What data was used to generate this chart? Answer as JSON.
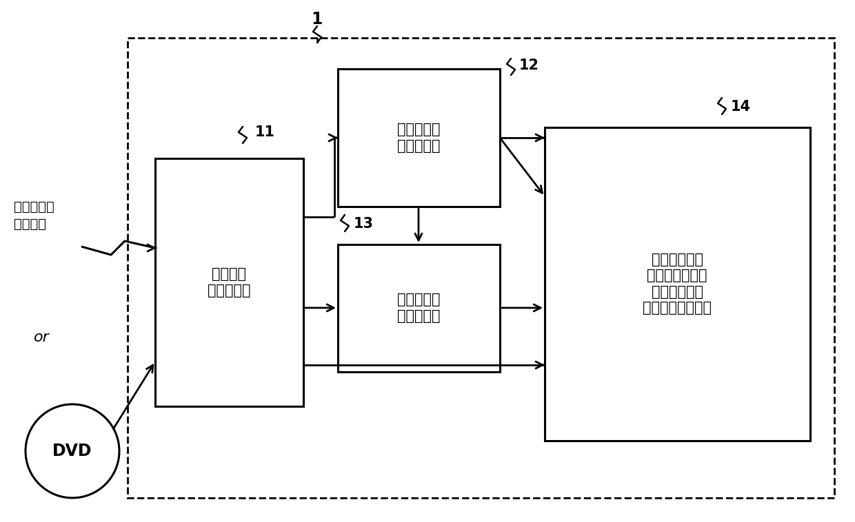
{
  "title_label": "1",
  "label_11": "11",
  "label_12": "12",
  "label_13": "13",
  "label_14": "14",
  "box11_text": "获取视听\n内容的部件",
  "box12_text": "检测敏感性\n片段的部件",
  "box13_text": "删除敏感性\n片段的部件",
  "box14_text": "再现非敏感性\n片段和音频描述\n信号以便替换\n敏感性片段的部件",
  "dvd_text": "DVD",
  "input_line1": "视听内容＋",
  "input_line2": "音频描述",
  "or_text": "or",
  "bg_color": "#ffffff",
  "box_color": "#ffffff",
  "box_edge_color": "#000000",
  "arrow_color": "#000000",
  "text_color": "#000000",
  "font_size_box": 15,
  "font_size_label": 15,
  "font_size_dvd": 17,
  "font_size_input": 14
}
